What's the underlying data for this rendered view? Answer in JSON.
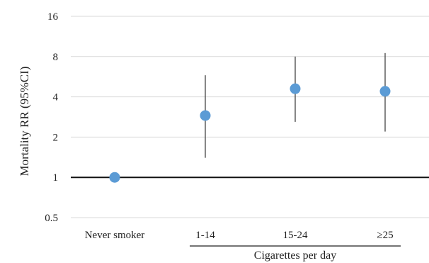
{
  "chart_data": {
    "type": "scatter",
    "title": "",
    "ylabel": "Mortality RR (95%CI)",
    "xlabel": "",
    "yscale": "log2",
    "ylim": [
      0.5,
      16
    ],
    "yticks": [
      {
        "value": 0.5,
        "label": "0.5"
      },
      {
        "value": 1,
        "label": "1"
      },
      {
        "value": 2,
        "label": "2"
      },
      {
        "value": 4,
        "label": "4"
      },
      {
        "value": 8,
        "label": "8"
      },
      {
        "value": 16,
        "label": "16"
      }
    ],
    "grid": true,
    "reference_line": 1,
    "categories": [
      "Never smoker",
      "1-14",
      "15-24",
      "≥25"
    ],
    "group_label": "Cigarettes per day",
    "group_members": [
      "1-14",
      "15-24",
      "≥25"
    ],
    "points": [
      {
        "category": "Never smoker",
        "rr": 1.0,
        "ci_low": null,
        "ci_high": null
      },
      {
        "category": "1-14",
        "rr": 2.9,
        "ci_low": 1.4,
        "ci_high": 5.8
      },
      {
        "category": "15-24",
        "rr": 4.6,
        "ci_low": 2.6,
        "ci_high": 8.0
      },
      {
        "category": "≥25",
        "rr": 4.4,
        "ci_low": 2.2,
        "ci_high": 8.5
      }
    ],
    "colors": {
      "point": "#5b9bd5",
      "errorbar": "#444444",
      "reference": "#111111"
    }
  }
}
